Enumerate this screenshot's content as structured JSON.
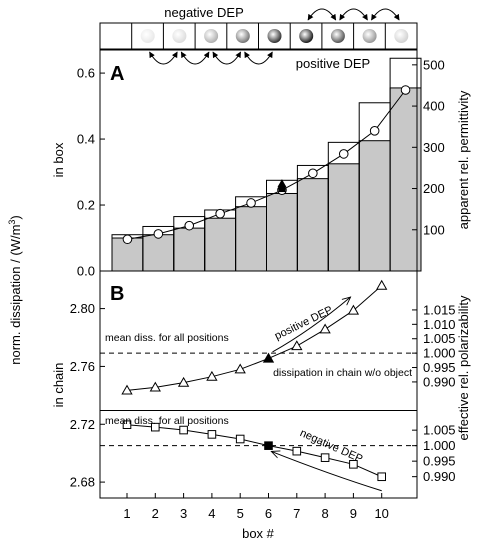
{
  "chart_data": [
    {
      "panel": "A",
      "type": "bar",
      "ylabel_left": "in box",
      "ylabel_right": "apparent rel. permittivity",
      "ylim_left": [
        0.0,
        0.67
      ],
      "ylim_right": [
        0,
        536
      ],
      "yticks_left": [
        "0.0",
        "0.2",
        "0.4",
        "0.6"
      ],
      "yticks_right": [
        "100",
        "200",
        "300",
        "400",
        "500"
      ],
      "categories": [
        1,
        2,
        3,
        4,
        5,
        6,
        7,
        8,
        9,
        10
      ],
      "series": [
        {
          "role": "gray-bars",
          "values": [
            0.1,
            0.11,
            0.13,
            0.16,
            0.195,
            0.235,
            0.28,
            0.325,
            0.395,
            0.555
          ]
        },
        {
          "role": "outline-boxes",
          "values": [
            0.11,
            0.135,
            0.165,
            0.185,
            0.225,
            0.275,
            0.32,
            0.39,
            0.51,
            0.645
          ]
        },
        {
          "role": "permittivity-circles",
          "values": [
            77,
            90,
            110,
            139,
            165,
            196,
            237,
            284,
            340,
            439
          ]
        }
      ],
      "markers": [
        {
          "symbol": "filled-triangle",
          "x": 6,
          "y": 0.265
        },
        {
          "symbol": "filled-square",
          "x": 6,
          "y": 0.25
        }
      ]
    },
    {
      "panel": "B",
      "type": "line",
      "xlabel": "box #",
      "ylabel_left": "in chain",
      "ylabel_shared": "norm. dissipation / (W/m³)",
      "ylim_left": [
        2.669,
        2.826
      ],
      "yticks_left": [
        "2.68",
        "2.72",
        "2.76",
        "2.80"
      ],
      "xticks": [
        "1",
        "2",
        "3",
        "4",
        "5",
        "6",
        "7",
        "8",
        "9",
        "10"
      ],
      "right_axis_upper": {
        "label": "",
        "ticks": [
          "0.990",
          "0.995",
          "1.000",
          "1.005",
          "1.010",
          "1.015"
        ]
      },
      "right_axis_lower": {
        "label": "effective rel. polarizability",
        "ticks": [
          "0.990",
          "0.995",
          "1.000",
          "1.005"
        ]
      },
      "x": [
        1,
        2,
        3,
        4,
        5,
        6,
        7,
        8,
        9,
        10
      ],
      "series": [
        {
          "role": "triangles",
          "values": [
            2.7434,
            2.7455,
            2.7488,
            2.7529,
            2.758,
            2.7655,
            2.7741,
            2.7857,
            2.7987,
            2.8159
          ]
        },
        {
          "role": "squares",
          "values": [
            2.7197,
            2.718,
            2.716,
            2.713,
            2.7098,
            2.7052,
            2.7014,
            2.6969,
            2.6923,
            2.6837
          ]
        }
      ],
      "reference_lines": [
        {
          "y": 2.7692,
          "style": "dashed",
          "label": "mean diss. for all positions"
        },
        {
          "y": 2.7295,
          "style": "solid",
          "label": "dissipation in chain w/o object"
        },
        {
          "y": 2.7052,
          "style": "dashed",
          "label": "mean diss. for all positions"
        }
      ],
      "arrow_labels": [
        "positive DEP",
        "negative DEP"
      ]
    }
  ],
  "panel_letters": [
    "A",
    "B"
  ],
  "schematic": {
    "top_label": "negative DEP",
    "bottom_label": "positive DEP"
  },
  "right_label_upper_b": "effective rel. polarizability"
}
